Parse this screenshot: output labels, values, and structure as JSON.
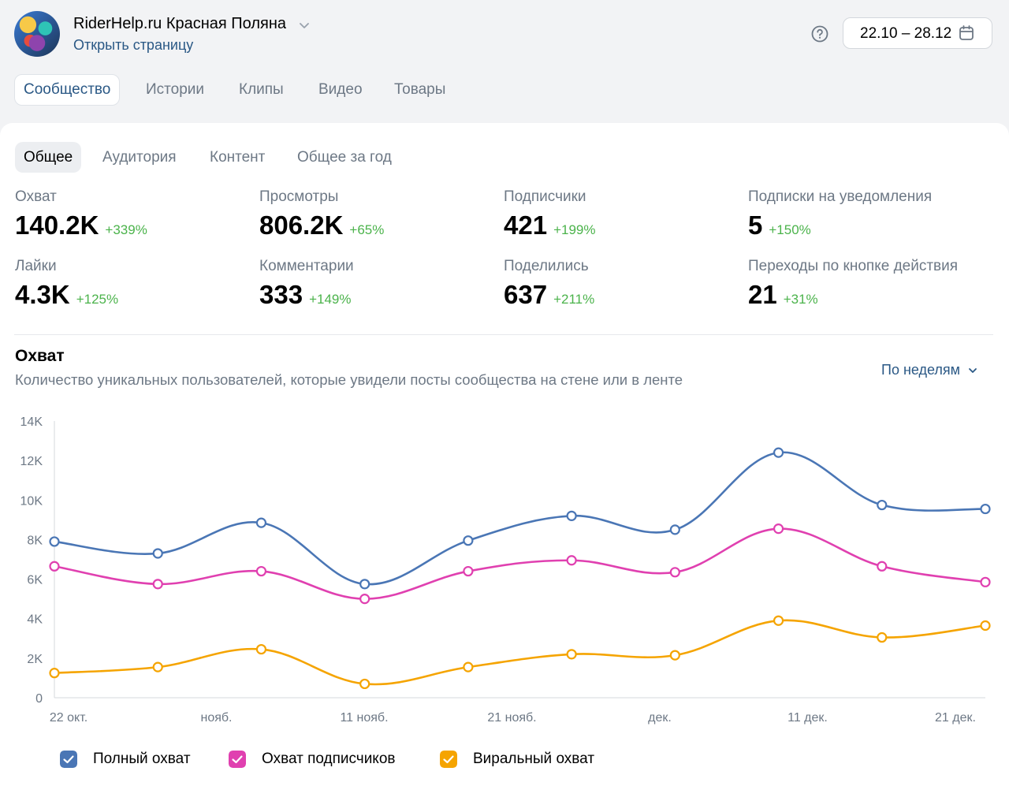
{
  "header": {
    "community_name": "RiderHelp.ru Красная Поляна",
    "open_page_link": "Открыть страницу",
    "date_range": "22.10 – 28.12"
  },
  "top_tabs": [
    {
      "label": "Сообщество",
      "active": true
    },
    {
      "label": "Истории",
      "active": false
    },
    {
      "label": "Клипы",
      "active": false
    },
    {
      "label": "Видео",
      "active": false
    },
    {
      "label": "Товары",
      "active": false
    }
  ],
  "sub_tabs": [
    {
      "label": "Общее",
      "active": true
    },
    {
      "label": "Аудитория",
      "active": false
    },
    {
      "label": "Контент",
      "active": false
    },
    {
      "label": "Общее за год",
      "active": false
    }
  ],
  "metrics": [
    {
      "label": "Охват",
      "value": "140.2K",
      "delta": "+339%"
    },
    {
      "label": "Просмотры",
      "value": "806.2K",
      "delta": "+65%"
    },
    {
      "label": "Подписчики",
      "value": "421",
      "delta": "+199%"
    },
    {
      "label": "Подписки на уведомления",
      "value": "5",
      "delta": "+150%"
    },
    {
      "label": "Лайки",
      "value": "4.3K",
      "delta": "+125%"
    },
    {
      "label": "Комментарии",
      "value": "333",
      "delta": "+149%"
    },
    {
      "label": "Поделились",
      "value": "637",
      "delta": "+211%"
    },
    {
      "label": "Переходы по кнопке действия",
      "value": "21",
      "delta": "+31%"
    }
  ],
  "chart_section": {
    "title": "Охват",
    "subtitle": "Количество уникальных пользователей, которые увидели посты сообщества на стене или в ленте",
    "period_selector": "По неделям"
  },
  "colors": {
    "accent": "#2a5885",
    "positive": "#4bb34b",
    "full_reach": "#4a76b5",
    "subscriber_reach": "#e040b0",
    "viral_reach": "#f5a400"
  },
  "icons": {
    "help": "question-circle-icon",
    "calendar": "calendar-icon",
    "dropdown": "chevron-down-icon"
  },
  "chart_data": {
    "type": "line",
    "xtick_labels": [
      "22 окт.",
      "нояб.",
      "11 нояб.",
      "21 нояб.",
      "дек.",
      "11 дек.",
      "21 дек."
    ],
    "ytick_labels": [
      "0",
      "2K",
      "4K",
      "6K",
      "8K",
      "10K",
      "12K",
      "14K"
    ],
    "ylim": [
      0,
      14000
    ],
    "grid": false,
    "legend_position": "bottom",
    "series": [
      {
        "name": "Полный охват",
        "color": "#4a76b5",
        "values": [
          7900,
          7300,
          8850,
          5750,
          7950,
          9200,
          8500,
          12400,
          9750,
          9550
        ]
      },
      {
        "name": "Охват подписчиков",
        "color": "#e040b0",
        "values": [
          6650,
          5750,
          6400,
          5000,
          6400,
          6950,
          6350,
          8550,
          6650,
          5850
        ]
      },
      {
        "name": "Виральный охват",
        "color": "#f5a400",
        "values": [
          1250,
          1550,
          2450,
          700,
          1550,
          2200,
          2150,
          3900,
          3050,
          3650
        ]
      }
    ]
  }
}
